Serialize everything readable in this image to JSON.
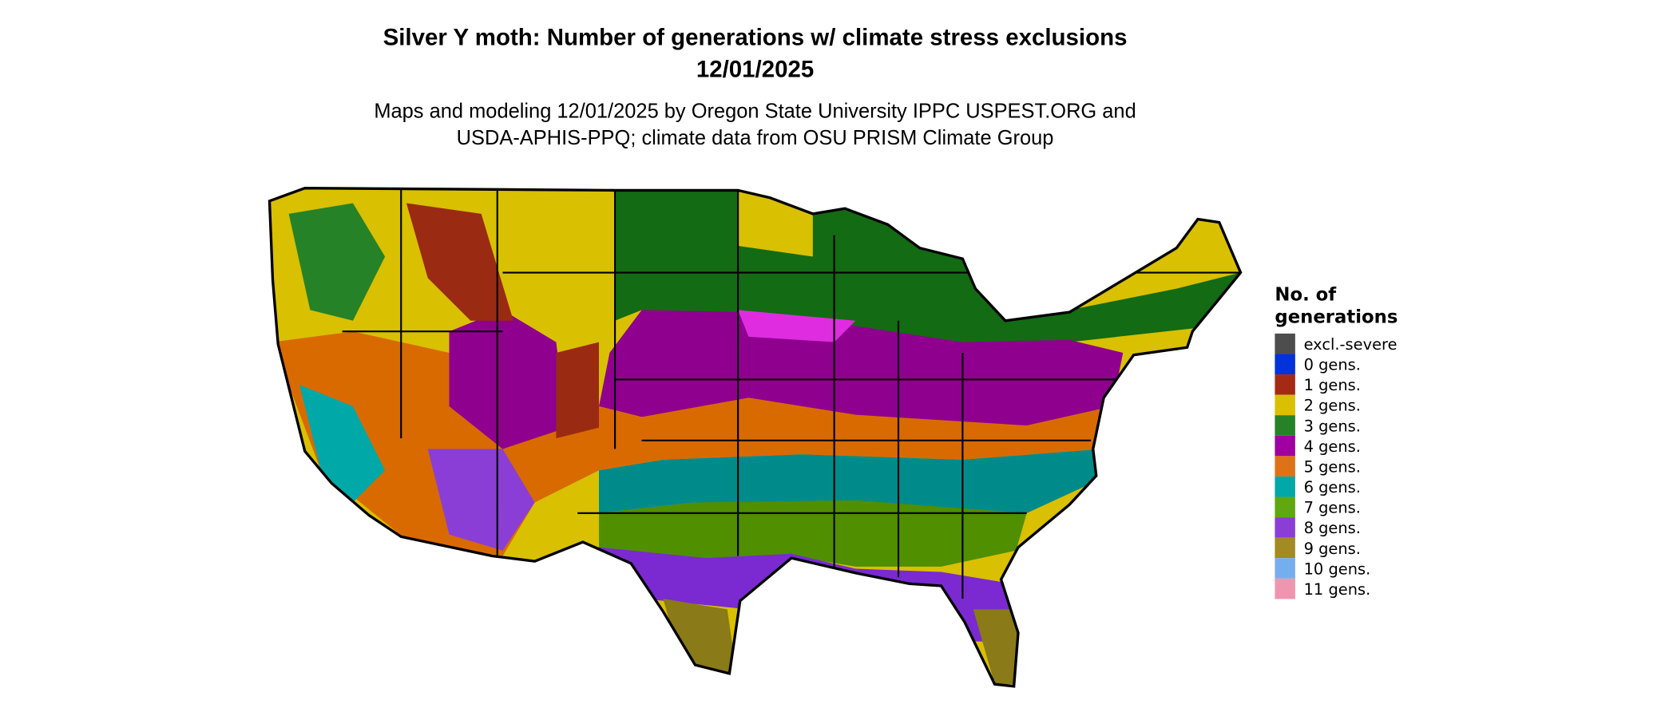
{
  "header": {
    "title": "Silver Y moth: Number of generations w/ climate stress exclusions",
    "date": "12/01/2025",
    "subtitle_line1": "Maps and modeling 12/01/2025 by Oregon State University IPPC USPEST.ORG and",
    "subtitle_line2": "USDA-APHIS-PPQ; climate data from OSU PRISM Climate Group"
  },
  "map": {
    "region": "Contiguous United States",
    "outline_color": "#000000"
  },
  "legend": {
    "title_line1": "No. of",
    "title_line2": "generations",
    "items": [
      {
        "label": "excl.-severe",
        "color": "#4d4d4d"
      },
      {
        "label": "0 gens.",
        "color": "#0033d9"
      },
      {
        "label": "1 gens.",
        "color": "#a52a16"
      },
      {
        "label": "2 gens.",
        "color": "#d9c000"
      },
      {
        "label": "3 gens.",
        "color": "#268226"
      },
      {
        "label": "4 gens.",
        "color": "#a000a0"
      },
      {
        "label": "5 gens.",
        "color": "#de7216"
      },
      {
        "label": "6 gens.",
        "color": "#00a8a8"
      },
      {
        "label": "7 gens.",
        "color": "#5fa80f"
      },
      {
        "label": "8 gens.",
        "color": "#8a3ed6"
      },
      {
        "label": "9 gens.",
        "color": "#a38a22"
      },
      {
        "label": "10 gens.",
        "color": "#75aeef"
      },
      {
        "label": "11 gens.",
        "color": "#f095b0"
      }
    ]
  }
}
